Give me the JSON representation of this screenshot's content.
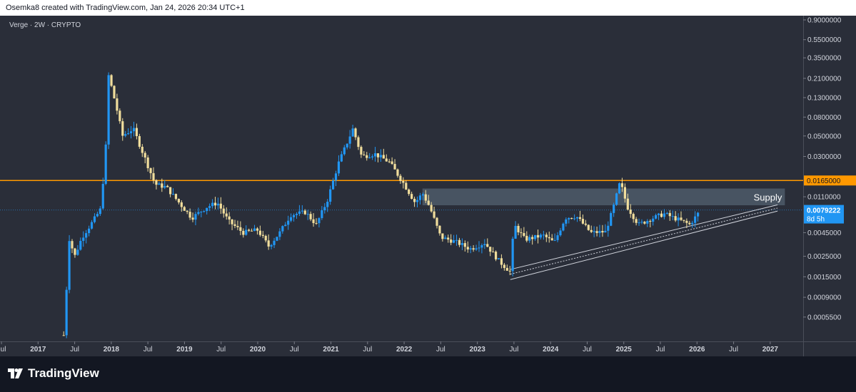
{
  "header": {
    "text": "Osemka8 created with TradingView.com, Jan 24, 2026 20:34 UTC+1"
  },
  "symbol_label": "Verge · 2W · CRYPTO",
  "footer": {
    "brand": "TradingView"
  },
  "colors": {
    "up": "#2196f3",
    "down": "#f0dd9c",
    "resistance": "#ff9800",
    "supply_zone": "#5d6e7e",
    "trendline": "#d1d4dc",
    "price_tag": "#2196f3"
  },
  "chart_data": {
    "type": "candlestick",
    "symbol": "Verge",
    "interval": "2W",
    "exchange": "CRYPTO",
    "y_scale": "log",
    "ylim": [
      0.0003,
      1.0
    ],
    "y_ticks": [
      {
        "value": 0.9,
        "label": "0.9000000"
      },
      {
        "value": 0.55,
        "label": "0.5500000"
      },
      {
        "value": 0.35,
        "label": "0.3500000"
      },
      {
        "value": 0.21,
        "label": "0.2100000"
      },
      {
        "value": 0.13,
        "label": "0.1300000"
      },
      {
        "value": 0.08,
        "label": "0.0800000"
      },
      {
        "value": 0.05,
        "label": "0.0500000"
      },
      {
        "value": 0.03,
        "label": "0.0300000"
      },
      {
        "value": 0.011,
        "label": "0.0110000"
      },
      {
        "value": 0.0045,
        "label": "0.0045000"
      },
      {
        "value": 0.0025,
        "label": "0.0025000"
      },
      {
        "value": 0.0015,
        "label": "0.0015000"
      },
      {
        "value": 0.0009,
        "label": "0.0009000"
      },
      {
        "value": 0.00055,
        "label": "0.0005500"
      }
    ],
    "x_ticks": [
      "Jul",
      "2017",
      "Jul",
      "2018",
      "Jul",
      "2019",
      "Jul",
      "2020",
      "Jul",
      "2021",
      "Jul",
      "2022",
      "Jul",
      "2023",
      "Jul",
      "2024",
      "Jul",
      "2025",
      "Jul",
      "2026",
      "Jul",
      "2027"
    ],
    "x_tick_dates": [
      2016.5,
      2017.0,
      2017.5,
      2018.0,
      2018.5,
      2019.0,
      2019.5,
      2020.0,
      2020.5,
      2021.0,
      2021.5,
      2022.0,
      2022.5,
      2023.0,
      2023.5,
      2024.0,
      2024.5,
      2025.0,
      2025.5,
      2026.0,
      2026.5,
      2027.0
    ],
    "xlim": [
      2016.48,
      2027.45
    ],
    "anchors": [
      {
        "t": 2017.35,
        "v": 0.00035
      },
      {
        "t": 2017.38,
        "v": 0.0008
      },
      {
        "t": 2017.42,
        "v": 0.004
      },
      {
        "t": 2017.5,
        "v": 0.0025
      },
      {
        "t": 2017.6,
        "v": 0.004
      },
      {
        "t": 2017.75,
        "v": 0.006
      },
      {
        "t": 2017.85,
        "v": 0.008
      },
      {
        "t": 2017.92,
        "v": 0.03
      },
      {
        "t": 2017.96,
        "v": 0.23
      },
      {
        "t": 2018.02,
        "v": 0.15
      },
      {
        "t": 2018.1,
        "v": 0.08
      },
      {
        "t": 2018.15,
        "v": 0.05
      },
      {
        "t": 2018.3,
        "v": 0.06
      },
      {
        "t": 2018.45,
        "v": 0.03
      },
      {
        "t": 2018.6,
        "v": 0.015
      },
      {
        "t": 2018.75,
        "v": 0.014
      },
      {
        "t": 2018.95,
        "v": 0.009
      },
      {
        "t": 2019.1,
        "v": 0.0065
      },
      {
        "t": 2019.3,
        "v": 0.0085
      },
      {
        "t": 2019.45,
        "v": 0.0095
      },
      {
        "t": 2019.6,
        "v": 0.006
      },
      {
        "t": 2019.8,
        "v": 0.0045
      },
      {
        "t": 2020.0,
        "v": 0.0048
      },
      {
        "t": 2020.15,
        "v": 0.0032
      },
      {
        "t": 2020.3,
        "v": 0.0045
      },
      {
        "t": 2020.45,
        "v": 0.007
      },
      {
        "t": 2020.65,
        "v": 0.0075
      },
      {
        "t": 2020.8,
        "v": 0.0055
      },
      {
        "t": 2020.95,
        "v": 0.01
      },
      {
        "t": 2021.1,
        "v": 0.025
      },
      {
        "t": 2021.3,
        "v": 0.06
      },
      {
        "t": 2021.42,
        "v": 0.03
      },
      {
        "t": 2021.6,
        "v": 0.032
      },
      {
        "t": 2021.8,
        "v": 0.026
      },
      {
        "t": 2022.0,
        "v": 0.015
      },
      {
        "t": 2022.15,
        "v": 0.0095
      },
      {
        "t": 2022.25,
        "v": 0.012
      },
      {
        "t": 2022.35,
        "v": 0.0085
      },
      {
        "t": 2022.5,
        "v": 0.004
      },
      {
        "t": 2022.7,
        "v": 0.0036
      },
      {
        "t": 2022.9,
        "v": 0.003
      },
      {
        "t": 2023.1,
        "v": 0.0035
      },
      {
        "t": 2023.3,
        "v": 0.0022
      },
      {
        "t": 2023.45,
        "v": 0.0017
      },
      {
        "t": 2023.5,
        "v": 0.0055
      },
      {
        "t": 2023.65,
        "v": 0.0038
      },
      {
        "t": 2023.9,
        "v": 0.0042
      },
      {
        "t": 2024.05,
        "v": 0.0035
      },
      {
        "t": 2024.2,
        "v": 0.0065
      },
      {
        "t": 2024.35,
        "v": 0.0068
      },
      {
        "t": 2024.55,
        "v": 0.0045
      },
      {
        "t": 2024.75,
        "v": 0.0046
      },
      {
        "t": 2024.85,
        "v": 0.008
      },
      {
        "t": 2024.95,
        "v": 0.016
      },
      {
        "t": 2025.05,
        "v": 0.0085
      },
      {
        "t": 2025.2,
        "v": 0.0055
      },
      {
        "t": 2025.4,
        "v": 0.0065
      },
      {
        "t": 2025.55,
        "v": 0.0072
      },
      {
        "t": 2025.75,
        "v": 0.0062
      },
      {
        "t": 2025.9,
        "v": 0.0055
      },
      {
        "t": 2026.05,
        "v": 0.0079
      }
    ],
    "resistance_level": {
      "value": 0.0165,
      "label": "0.0165000"
    },
    "supply_zone": {
      "t0": 2022.25,
      "t1": 2027.2,
      "low": 0.0089,
      "high": 0.0135,
      "label": "Supply"
    },
    "trendlines": [
      {
        "t0": 2023.45,
        "v0": 0.0018,
        "t1": 2027.1,
        "v1": 0.009
      },
      {
        "t0": 2023.45,
        "v0": 0.0016,
        "t1": 2027.1,
        "v1": 0.0083
      },
      {
        "t0": 2023.45,
        "v0": 0.0014,
        "t1": 2027.1,
        "v1": 0.0077
      }
    ],
    "current_price": {
      "value": 0.0079222,
      "label": "0.0079222",
      "countdown": "8d 5h"
    }
  }
}
